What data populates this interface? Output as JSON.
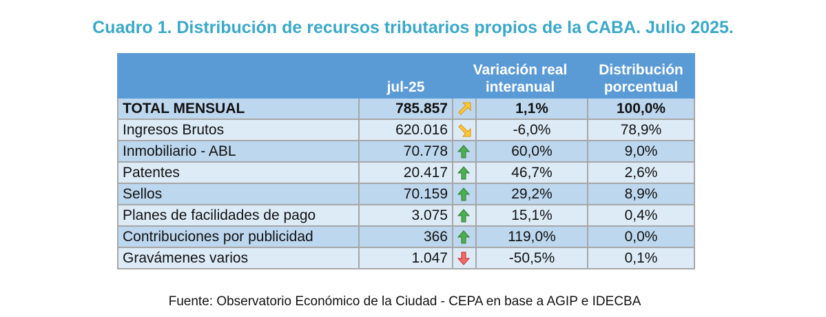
{
  "title": "Cuadro 1. Distribución de recursos tributarios propios de la CABA. Julio 2025.",
  "headers": {
    "value": "jul-25",
    "variation": "Variación real interanual",
    "distribution": "Distribución porcentual"
  },
  "rows": [
    {
      "label": "TOTAL MENSUAL",
      "value": "785.857",
      "trend": "up-right-yellow",
      "variation": "1,1%",
      "distribution": "100,0%"
    },
    {
      "label": "Ingresos Brutos",
      "value": "620.016",
      "trend": "down-right-yellow",
      "variation": "-6,0%",
      "distribution": "78,9%"
    },
    {
      "label": "Inmobiliario - ABL",
      "value": "70.778",
      "trend": "up-green",
      "variation": "60,0%",
      "distribution": "9,0%"
    },
    {
      "label": "Patentes",
      "value": "20.417",
      "trend": "up-green",
      "variation": "46,7%",
      "distribution": "2,6%"
    },
    {
      "label": "Sellos",
      "value": "70.159",
      "trend": "up-green",
      "variation": "29,2%",
      "distribution": "8,9%"
    },
    {
      "label": "Planes de facilidades de pago",
      "value": "3.075",
      "trend": "up-green",
      "variation": "15,1%",
      "distribution": "0,4%"
    },
    {
      "label": "Contribuciones por publicidad",
      "value": "366",
      "trend": "up-green",
      "variation": "119,0%",
      "distribution": "0,0%"
    },
    {
      "label": "Gravámenes varios",
      "value": "1.047",
      "trend": "down-red",
      "variation": "-50,5%",
      "distribution": "0,1%"
    }
  ],
  "source": "Fuente: Observatorio Económico de la Ciudad - CEPA en base a AGIP e IDECBA",
  "colors": {
    "title": "#3aa8c8",
    "header": "#5b9bd5",
    "row_dark": "#bdd7ee",
    "row_light": "#ddebf7"
  }
}
